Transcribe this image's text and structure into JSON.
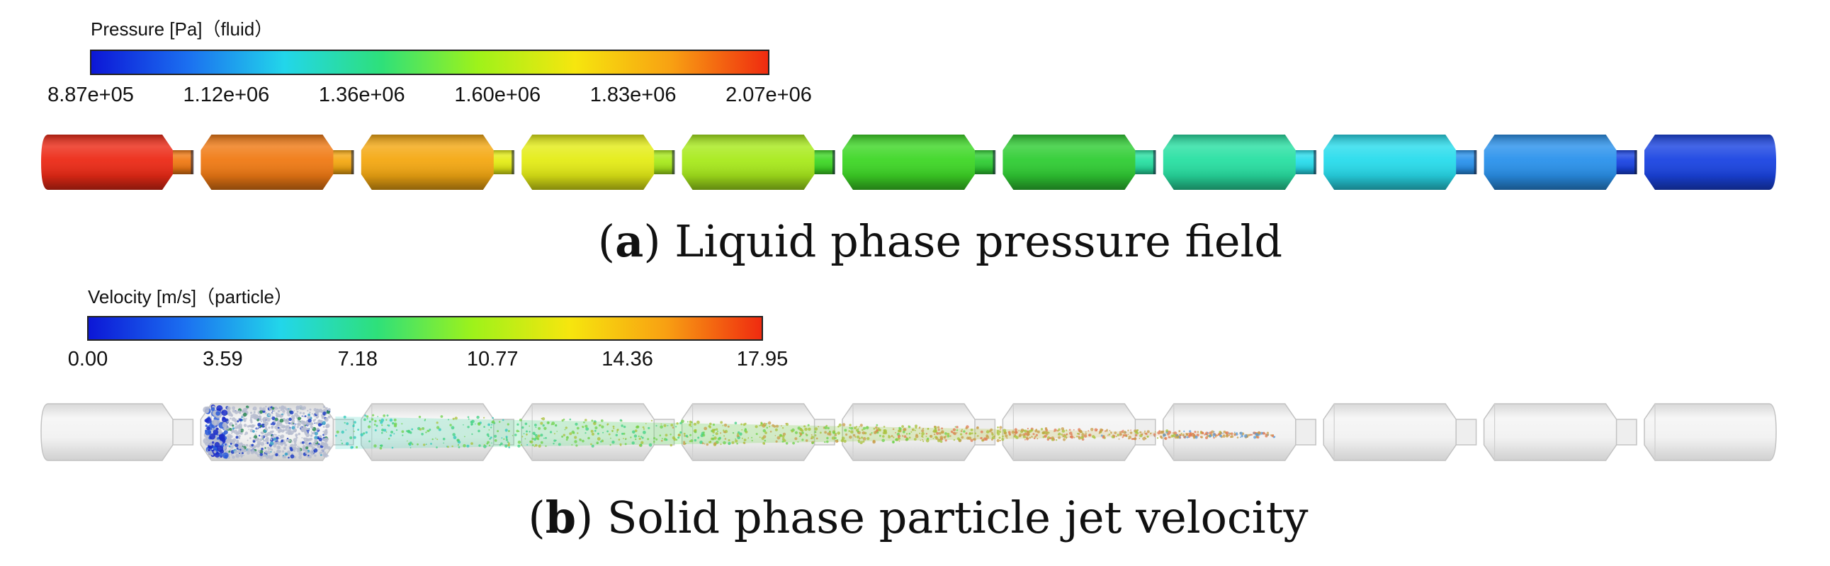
{
  "panel_a": {
    "legend_title": "Pressure [Pa]（fluid）",
    "ticks": [
      "8.87e+05",
      "1.12e+06",
      "1.36e+06",
      "1.60e+06",
      "1.83e+06",
      "2.07e+06"
    ],
    "caption_letter": "a",
    "caption_text": " Liquid phase pressure field",
    "segment_colors": [
      "#ec2a16",
      "#f07a14",
      "#f4a812",
      "#e4ec16",
      "#a8ea1c",
      "#3ed726",
      "#30cd34",
      "#28e0a2",
      "#28dcec",
      "#2a92ec",
      "#1a44e2"
    ]
  },
  "panel_b": {
    "legend_title": "Velocity [m/s]（particle）",
    "ticks": [
      "0.00",
      "3.59",
      "7.18",
      "10.77",
      "14.36",
      "17.95"
    ],
    "caption_letter": "b",
    "caption_text": " Solid phase particle jet velocity"
  },
  "colormap": [
    "#0c16d6",
    "#1b6ff0",
    "#22d6ea",
    "#2ee07a",
    "#9ef21a",
    "#f6e60e",
    "#f8a012",
    "#ef2a10"
  ]
}
